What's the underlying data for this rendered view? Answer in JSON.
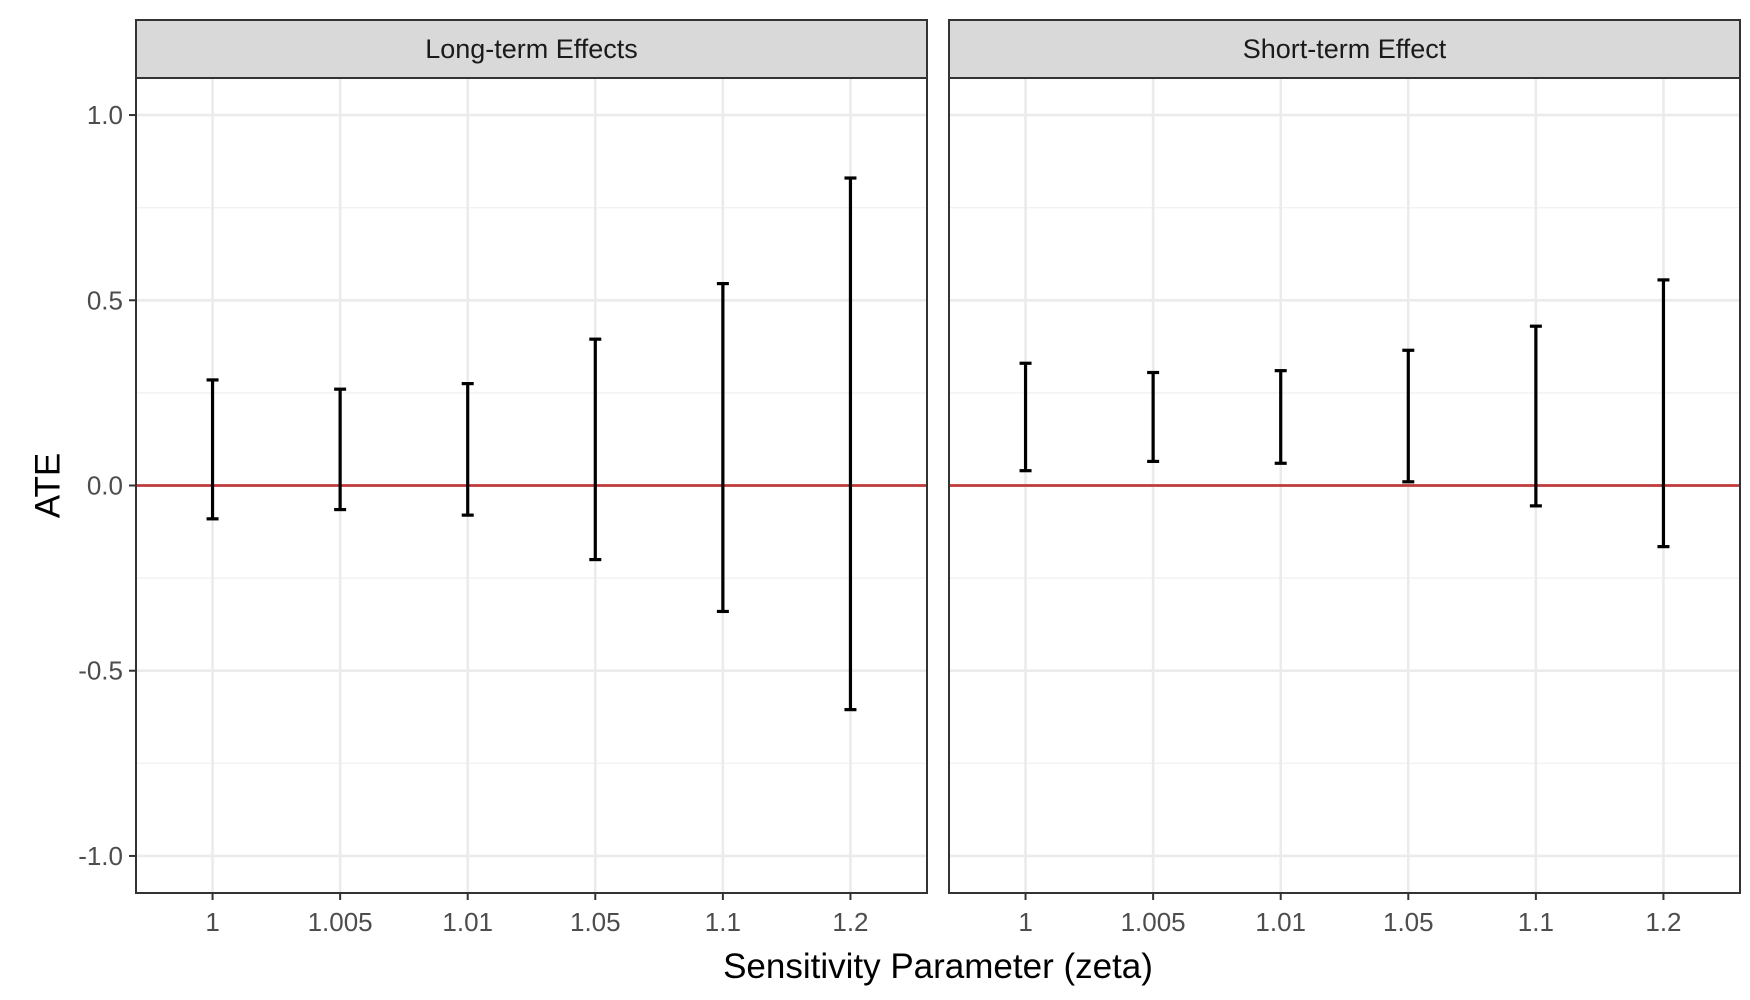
{
  "chart_data": {
    "type": "errorbar",
    "xlabel": "Sensitivity Parameter (zeta)",
    "ylabel": "ATE",
    "ylim": [
      -1.1,
      1.1
    ],
    "yticks": [
      "-1.0",
      "-0.5",
      "0.0",
      "0.5",
      "1.0"
    ],
    "ytick_values": [
      -1.0,
      -0.5,
      0.0,
      0.5,
      1.0
    ],
    "categories": [
      "1",
      "1.005",
      "1.01",
      "1.05",
      "1.1",
      "1.2"
    ],
    "reference_line": {
      "y": 0,
      "color": "#c0393b"
    },
    "grid": true,
    "colors": {
      "strip_fill": "#d9d9d9",
      "panel_border": "#333333",
      "grid_major": "#ebebeb",
      "grid_minor": "#f2f2f2",
      "errorbar": "#000000"
    },
    "panels": [
      {
        "title": "Long-term Effects",
        "lower": [
          -0.09,
          -0.065,
          -0.08,
          -0.2,
          -0.34,
          -0.605
        ],
        "upper": [
          0.285,
          0.26,
          0.275,
          0.395,
          0.545,
          0.83
        ]
      },
      {
        "title": "Short-term Effect",
        "lower": [
          0.04,
          0.065,
          0.06,
          0.01,
          -0.055,
          -0.165
        ],
        "upper": [
          0.33,
          0.305,
          0.31,
          0.365,
          0.43,
          0.555
        ]
      }
    ]
  }
}
